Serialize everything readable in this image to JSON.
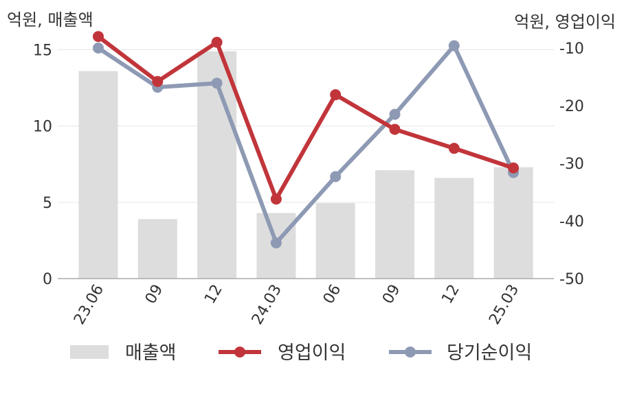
{
  "chart_data": {
    "type": "bar",
    "categories": [
      "23.06",
      "09",
      "12",
      "24.03",
      "06",
      "09",
      "12",
      "25.03"
    ],
    "y_left_label": "억원, 매출액",
    "y_right_label": "억원, 영업이익",
    "y_left_range": [
      0,
      17
    ],
    "y_right_range": [
      -50,
      -5
    ],
    "y_left_ticks": [
      0,
      5,
      10,
      15
    ],
    "y_right_ticks": [
      -50,
      -40,
      -30,
      -20,
      -10
    ],
    "grid": true,
    "legend_position": "bottom",
    "series": [
      {
        "name": "매출액",
        "kind": "bar",
        "axis": "left",
        "color": "#dddddd",
        "values": [
          13.6,
          3.9,
          14.9,
          4.3,
          4.95,
          7.1,
          6.6,
          7.3
        ]
      },
      {
        "name": "영업이익",
        "kind": "line",
        "axis": "right",
        "color": "#c1353a",
        "values": [
          -8.0,
          -15.8,
          -9.0,
          -36.2,
          -18.1,
          -24.1,
          -27.4,
          -30.8
        ]
      },
      {
        "name": "당기순이익",
        "kind": "line",
        "axis": "right",
        "color": "#8e9ab4",
        "values": [
          -10.0,
          -16.8,
          -16.1,
          -43.8,
          -32.3,
          -21.5,
          -9.6,
          -31.6
        ]
      }
    ]
  }
}
